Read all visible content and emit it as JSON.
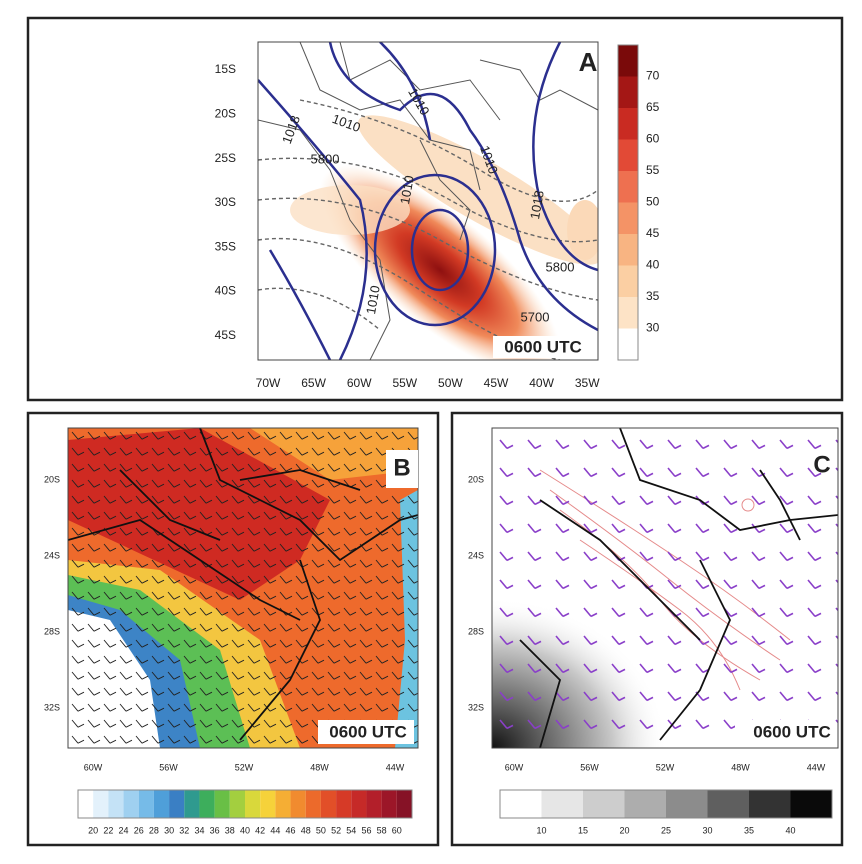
{
  "panels": [
    {
      "label": "A",
      "time": "0600 UTC",
      "lat_labels": [
        "15S",
        "20S",
        "25S",
        "30S",
        "35S",
        "40S",
        "45S"
      ],
      "lon_labels": [
        "70W",
        "65W",
        "60W",
        "55W",
        "50W",
        "45W",
        "40W",
        "35W"
      ],
      "colorbar": [
        30,
        35,
        40,
        45,
        50,
        55,
        60,
        65,
        70
      ],
      "contour_labels": [
        "1010",
        "1010",
        "1018",
        "1010",
        "1018",
        "1010",
        "5800",
        "5800",
        "5700",
        "1010"
      ]
    },
    {
      "label": "B",
      "time": "0600 UTC",
      "lat_labels": [
        "20S",
        "24S",
        "28S",
        "32S"
      ],
      "lon_labels": [
        "60W",
        "56W",
        "52W",
        "48W",
        "44W"
      ],
      "colorbar": [
        20,
        22,
        24,
        26,
        28,
        30,
        32,
        34,
        36,
        38,
        40,
        42,
        44,
        46,
        48,
        50,
        52,
        54,
        56,
        58,
        60
      ]
    },
    {
      "label": "C",
      "time": "0600 UTC",
      "lat_labels": [
        "20S",
        "24S",
        "28S",
        "32S"
      ],
      "lon_labels": [
        "60W",
        "56W",
        "52W",
        "48W",
        "44W"
      ],
      "colorbar": [
        10,
        15,
        20,
        25,
        30,
        35,
        40
      ]
    }
  ]
}
